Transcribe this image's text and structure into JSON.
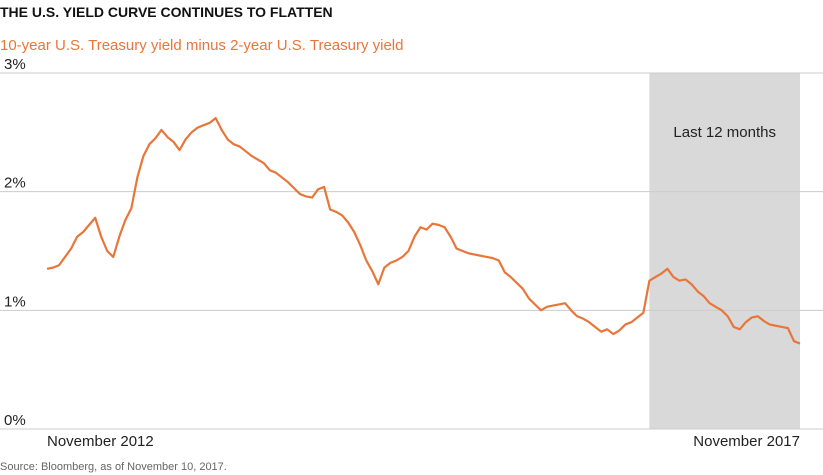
{
  "chart_data": {
    "type": "line",
    "title": "THE U.S. YIELD CURVE CONTINUES TO FLATTEN",
    "subtitle": "10-year U.S. Treasury yield minus 2-year U.S. Treasury yield",
    "source": "Source: Bloomberg, as of November 10, 2017.",
    "annotation": "Last 12 months",
    "highlight_from": 100,
    "categories": [
      "November 2012",
      null,
      null,
      null,
      null,
      null,
      null,
      null,
      null,
      null,
      null,
      null,
      null,
      null,
      null,
      null,
      null,
      null,
      null,
      null,
      null,
      null,
      null,
      null,
      null,
      null,
      null,
      null,
      null,
      null,
      null,
      null,
      null,
      null,
      null,
      null,
      null,
      null,
      null,
      null,
      null,
      null,
      null,
      null,
      null,
      null,
      null,
      null,
      null,
      null,
      null,
      null,
      null,
      null,
      null,
      null,
      null,
      null,
      null,
      null,
      null,
      null,
      null,
      null,
      null,
      null,
      null,
      null,
      null,
      null,
      null,
      null,
      null,
      null,
      null,
      null,
      null,
      null,
      null,
      null,
      null,
      null,
      null,
      null,
      null,
      null,
      null,
      null,
      null,
      null,
      null,
      null,
      null,
      null,
      null,
      null,
      null,
      null,
      null,
      null,
      null,
      null,
      null,
      null,
      null,
      null,
      null,
      null,
      null,
      null,
      null,
      null,
      null,
      null,
      null,
      null,
      null,
      null,
      null,
      null,
      null,
      null,
      null,
      null,
      null,
      "November 2017"
    ],
    "series": [
      {
        "name": "10-year minus 2-year",
        "color": "#e8763a",
        "values": [
          1.35,
          1.36,
          1.38,
          1.45,
          1.52,
          1.62,
          1.66,
          1.72,
          1.78,
          1.62,
          1.5,
          1.45,
          1.62,
          1.76,
          1.86,
          2.12,
          2.3,
          2.4,
          2.45,
          2.52,
          2.46,
          2.42,
          2.35,
          2.44,
          2.5,
          2.54,
          2.56,
          2.58,
          2.62,
          2.52,
          2.44,
          2.4,
          2.38,
          2.34,
          2.3,
          2.27,
          2.24,
          2.18,
          2.16,
          2.12,
          2.08,
          2.03,
          1.98,
          1.96,
          1.95,
          2.02,
          2.04,
          1.85,
          1.83,
          1.8,
          1.74,
          1.66,
          1.55,
          1.42,
          1.33,
          1.22,
          1.36,
          1.4,
          1.42,
          1.45,
          1.5,
          1.62,
          1.7,
          1.68,
          1.73,
          1.72,
          1.7,
          1.62,
          1.52,
          1.5,
          1.48,
          1.47,
          1.46,
          1.45,
          1.44,
          1.42,
          1.32,
          1.28,
          1.23,
          1.18,
          1.1,
          1.05,
          1.0,
          1.03,
          1.04,
          1.05,
          1.06,
          1.0,
          0.95,
          0.93,
          0.9,
          0.86,
          0.82,
          0.84,
          0.8,
          0.83,
          0.88,
          0.9,
          0.94,
          0.98,
          1.25,
          1.28,
          1.31,
          1.35,
          1.28,
          1.25,
          1.26,
          1.22,
          1.16,
          1.12,
          1.06,
          1.03,
          1.0,
          0.95,
          0.86,
          0.84,
          0.9,
          0.94,
          0.95,
          0.91,
          0.88,
          0.87,
          0.86,
          0.85,
          0.74,
          0.72
        ]
      }
    ],
    "ylim": [
      0,
      3
    ],
    "yticks": [
      {
        "value": 0,
        "label": "0%"
      },
      {
        "value": 1,
        "label": "1%"
      },
      {
        "value": 2,
        "label": "2%"
      },
      {
        "value": 3,
        "label": "3%"
      }
    ],
    "grid": true
  }
}
